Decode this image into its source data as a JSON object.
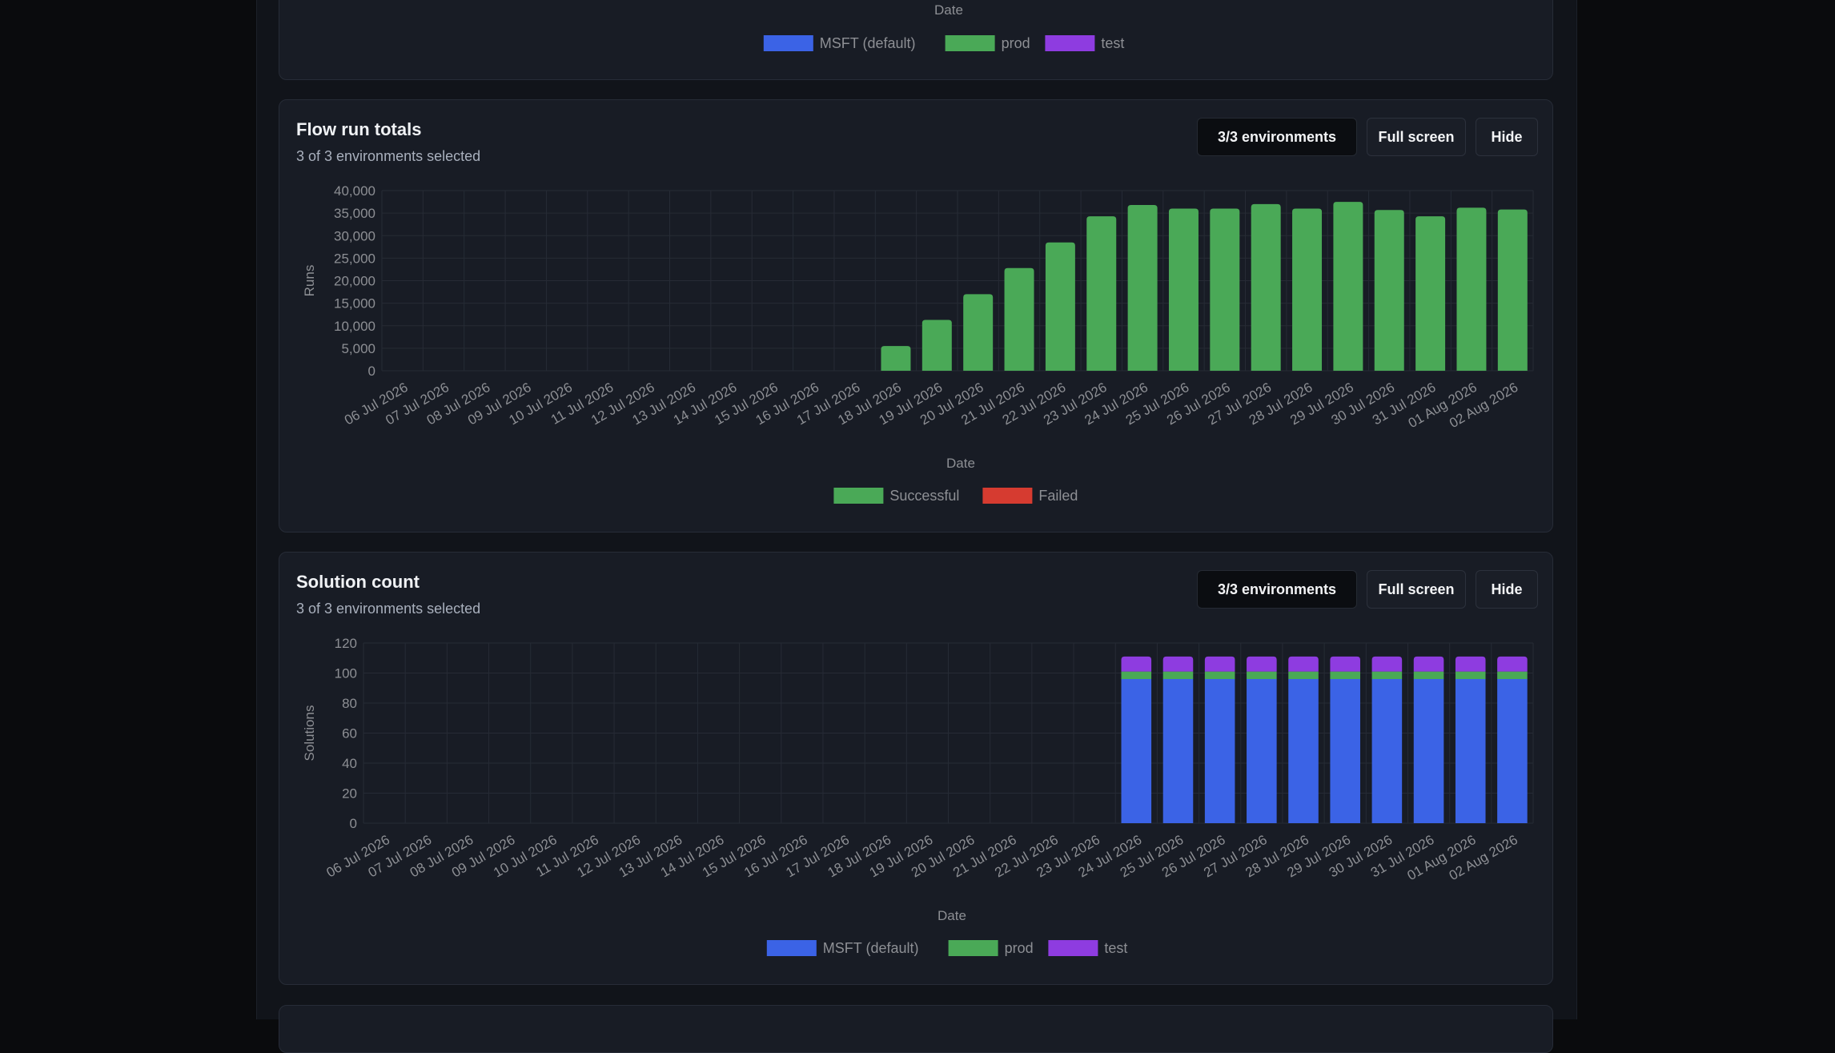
{
  "top_card": {
    "xlabel": "Date",
    "legend": [
      {
        "label": "MSFT (default)",
        "color": "#3b63e6"
      },
      {
        "label": "prod",
        "color": "#4aa957"
      },
      {
        "label": "test",
        "color": "#8e3ce0"
      }
    ]
  },
  "flow_card": {
    "title": "Flow run totals",
    "subtitle": "3 of 3 environments selected",
    "env_button": "3/3 environments",
    "fullscreen_button": "Full screen",
    "hide_button": "Hide"
  },
  "solution_card": {
    "title": "Solution count",
    "subtitle": "3 of 3 environments selected",
    "env_button": "3/3 environments",
    "fullscreen_button": "Full screen",
    "hide_button": "Hide"
  },
  "colors": {
    "success": "#4aa957",
    "failed": "#d63b30",
    "msft": "#3b63e6",
    "prod": "#4aa957",
    "test": "#8e3ce0"
  },
  "chart_data": [
    {
      "type": "bar",
      "stacked": true,
      "xlabel": "Date",
      "ylabel": "Runs",
      "ylim": [
        0,
        40000
      ],
      "yticks": [
        0,
        5000,
        10000,
        15000,
        20000,
        25000,
        30000,
        35000,
        40000
      ],
      "ytick_labels": [
        "0",
        "5,000",
        "10,000",
        "15,000",
        "20,000",
        "25,000",
        "30,000",
        "35,000",
        "40,000"
      ],
      "grid": true,
      "legend_position": "bottom",
      "categories": [
        "06 Jul 2026",
        "07 Jul 2026",
        "08 Jul 2026",
        "09 Jul 2026",
        "10 Jul 2026",
        "11 Jul 2026",
        "12 Jul 2026",
        "13 Jul 2026",
        "14 Jul 2026",
        "15 Jul 2026",
        "16 Jul 2026",
        "17 Jul 2026",
        "18 Jul 2026",
        "19 Jul 2026",
        "20 Jul 2026",
        "21 Jul 2026",
        "22 Jul 2026",
        "23 Jul 2026",
        "24 Jul 2026",
        "25 Jul 2026",
        "26 Jul 2026",
        "27 Jul 2026",
        "28 Jul 2026",
        "29 Jul 2026",
        "30 Jul 2026",
        "31 Jul 2026",
        "01 Aug 2026",
        "02 Aug 2026"
      ],
      "series": [
        {
          "name": "Successful",
          "color": "#4aa957",
          "values": [
            0,
            0,
            0,
            0,
            0,
            0,
            0,
            0,
            0,
            0,
            0,
            0,
            5500,
            11300,
            17000,
            22800,
            28500,
            34300,
            36800,
            36000,
            36000,
            37000,
            36000,
            37500,
            35700,
            34300,
            36200,
            35800
          ]
        },
        {
          "name": "Failed",
          "color": "#d63b30",
          "values": [
            0,
            0,
            0,
            0,
            0,
            0,
            0,
            0,
            0,
            0,
            0,
            0,
            0,
            0,
            0,
            0,
            0,
            0,
            0,
            0,
            0,
            0,
            0,
            0,
            0,
            0,
            0,
            0
          ]
        }
      ]
    },
    {
      "type": "bar",
      "stacked": true,
      "xlabel": "Date",
      "ylabel": "Solutions",
      "ylim": [
        0,
        120
      ],
      "yticks": [
        0,
        20,
        40,
        60,
        80,
        100,
        120
      ],
      "ytick_labels": [
        "0",
        "20",
        "40",
        "60",
        "80",
        "100",
        "120"
      ],
      "grid": true,
      "legend_position": "bottom",
      "categories": [
        "06 Jul 2026",
        "07 Jul 2026",
        "08 Jul 2026",
        "09 Jul 2026",
        "10 Jul 2026",
        "11 Jul 2026",
        "12 Jul 2026",
        "13 Jul 2026",
        "14 Jul 2026",
        "15 Jul 2026",
        "16 Jul 2026",
        "17 Jul 2026",
        "18 Jul 2026",
        "19 Jul 2026",
        "20 Jul 2026",
        "21 Jul 2026",
        "22 Jul 2026",
        "23 Jul 2026",
        "24 Jul 2026",
        "25 Jul 2026",
        "26 Jul 2026",
        "27 Jul 2026",
        "28 Jul 2026",
        "29 Jul 2026",
        "30 Jul 2026",
        "31 Jul 2026",
        "01 Aug 2026",
        "02 Aug 2026"
      ],
      "series": [
        {
          "name": "MSFT (default)",
          "color": "#3b63e6",
          "values": [
            0,
            0,
            0,
            0,
            0,
            0,
            0,
            0,
            0,
            0,
            0,
            0,
            0,
            0,
            0,
            0,
            0,
            0,
            96,
            96,
            96,
            96,
            96,
            96,
            96,
            96,
            96,
            96
          ]
        },
        {
          "name": "prod",
          "color": "#4aa957",
          "values": [
            0,
            0,
            0,
            0,
            0,
            0,
            0,
            0,
            0,
            0,
            0,
            0,
            0,
            0,
            0,
            0,
            0,
            0,
            5,
            5,
            5,
            5,
            5,
            5,
            5,
            5,
            5,
            5
          ]
        },
        {
          "name": "test",
          "color": "#8e3ce0",
          "values": [
            0,
            0,
            0,
            0,
            0,
            0,
            0,
            0,
            0,
            0,
            0,
            0,
            0,
            0,
            0,
            0,
            0,
            0,
            10,
            10,
            10,
            10,
            10,
            10,
            10,
            10,
            10,
            10
          ]
        }
      ]
    }
  ]
}
